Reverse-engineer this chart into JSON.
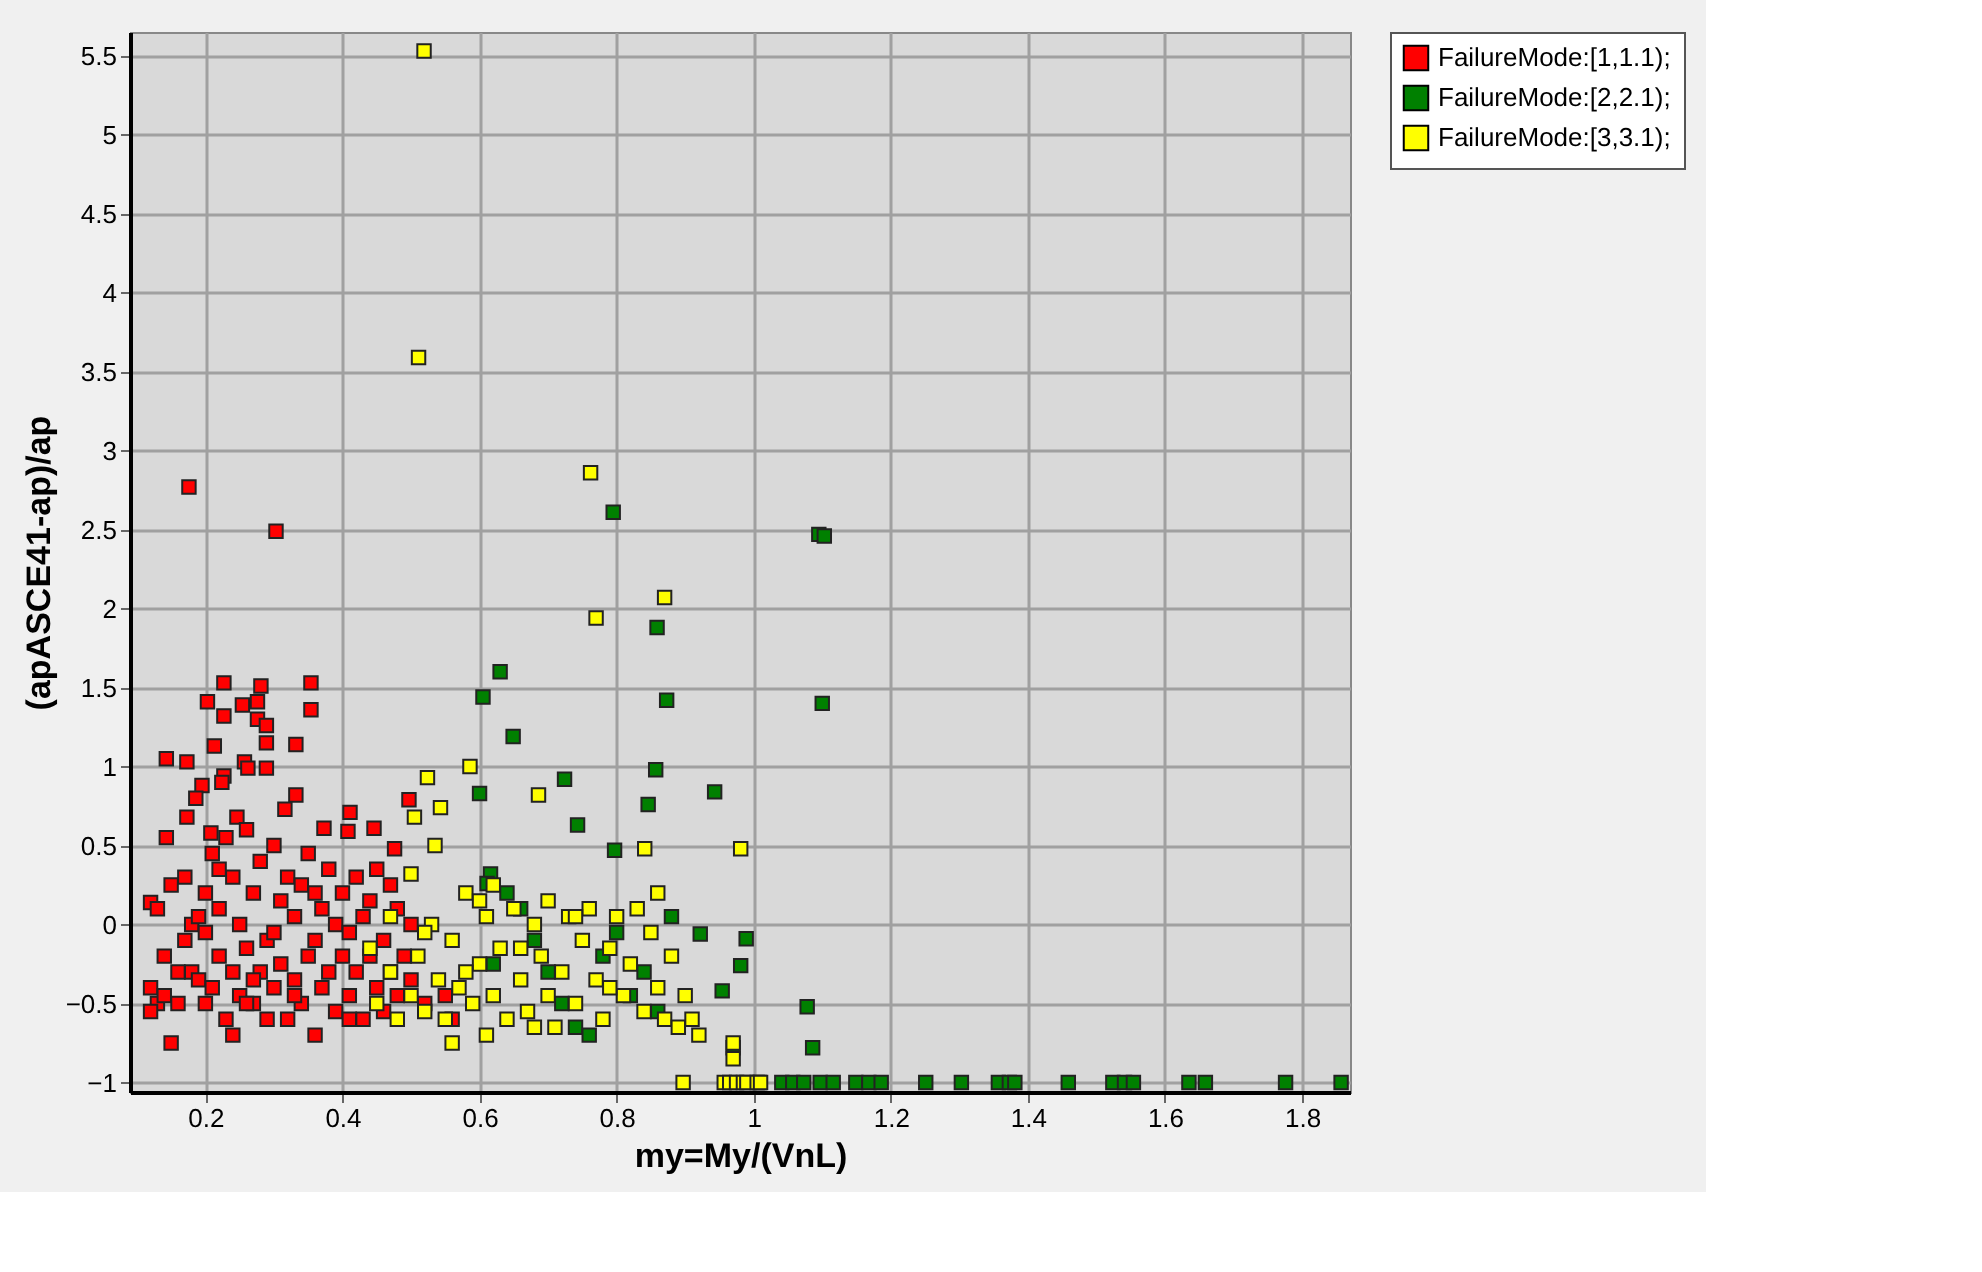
{
  "chart_data": {
    "type": "scatter",
    "xlabel": "my=My/(VnL)",
    "ylabel": "(apASCE41-ap)/ap",
    "xlim": [
      0.09,
      1.87
    ],
    "ylim": [
      -1.06,
      5.65
    ],
    "xticks": [
      0.2,
      0.4,
      0.6,
      0.8,
      1,
      1.2,
      1.4,
      1.6,
      1.8
    ],
    "yticks": [
      -1,
      -0.5,
      0,
      0.5,
      1,
      1.5,
      2,
      2.5,
      3,
      3.5,
      4,
      4.5,
      5,
      5.5
    ],
    "grid": true,
    "legend": "top right",
    "marker": "square",
    "series": [
      {
        "name": "FailureMode:[1,1.1);",
        "color": "#ff0000",
        "x": [
          0.176,
          0.303,
          0.227,
          0.281,
          0.354,
          0.203,
          0.227,
          0.254,
          0.276,
          0.354,
          0.276,
          0.289,
          0.289,
          0.332,
          0.213,
          0.143,
          0.173,
          0.257,
          0.262,
          0.289,
          0.195,
          0.227,
          0.224,
          0.186,
          0.332,
          0.173,
          0.316,
          0.246,
          0.208,
          0.143,
          0.373,
          0.411,
          0.446,
          0.408,
          0.476,
          0.497,
          0.12,
          0.13,
          0.14,
          0.12,
          0.13,
          0.12,
          0.14,
          0.15,
          0.16,
          0.17,
          0.17,
          0.18,
          0.18,
          0.19,
          0.2,
          0.2,
          0.21,
          0.21,
          0.22,
          0.22,
          0.23,
          0.23,
          0.24,
          0.24,
          0.25,
          0.25,
          0.26,
          0.26,
          0.27,
          0.27,
          0.28,
          0.28,
          0.29,
          0.3,
          0.3,
          0.31,
          0.31,
          0.32,
          0.32,
          0.33,
          0.33,
          0.34,
          0.34,
          0.35,
          0.35,
          0.36,
          0.36,
          0.37,
          0.37,
          0.38,
          0.38,
          0.39,
          0.39,
          0.4,
          0.4,
          0.41,
          0.41,
          0.42,
          0.42,
          0.43,
          0.43,
          0.44,
          0.44,
          0.45,
          0.45,
          0.46,
          0.46,
          0.47,
          0.47,
          0.48,
          0.48,
          0.49,
          0.5,
          0.5,
          0.52,
          0.55,
          0.56,
          0.19,
          0.15,
          0.16,
          0.27,
          0.29,
          0.33,
          0.2,
          0.24,
          0.3,
          0.36,
          0.41,
          0.26,
          0.22
        ],
        "values": [
          2.77,
          2.49,
          1.53,
          1.51,
          1.53,
          1.41,
          1.32,
          1.39,
          1.41,
          1.36,
          1.3,
          1.26,
          1.15,
          1.14,
          1.13,
          1.05,
          1.03,
          1.03,
          0.99,
          0.99,
          0.88,
          0.94,
          0.9,
          0.8,
          0.82,
          0.68,
          0.73,
          0.68,
          0.58,
          0.55,
          0.61,
          0.71,
          0.61,
          0.59,
          0.48,
          0.79,
          0.14,
          0.1,
          -0.2,
          -0.4,
          -0.5,
          -0.55,
          -0.45,
          -0.75,
          -0.5,
          0.3,
          -0.1,
          -0.3,
          0.0,
          -0.35,
          0.2,
          -0.05,
          0.45,
          -0.4,
          -0.2,
          0.1,
          0.55,
          -0.6,
          -0.3,
          0.3,
          0.0,
          -0.45,
          0.6,
          -0.15,
          -0.5,
          0.2,
          -0.3,
          0.4,
          -0.1,
          0.5,
          -0.4,
          -0.25,
          0.15,
          -0.6,
          0.3,
          -0.35,
          0.05,
          -0.5,
          0.25,
          -0.2,
          0.45,
          -0.7,
          -0.1,
          -0.4,
          0.1,
          -0.3,
          0.35,
          -0.55,
          0.0,
          -0.2,
          0.2,
          -0.45,
          -0.05,
          -0.3,
          0.3,
          -0.6,
          0.05,
          -0.2,
          0.15,
          -0.4,
          0.35,
          -0.1,
          -0.55,
          0.25,
          -0.3,
          0.1,
          -0.45,
          -0.2,
          0.0,
          -0.35,
          -0.5,
          -0.45,
          -0.6,
          0.05,
          0.25,
          -0.3,
          -0.35,
          -0.6,
          -0.45,
          -0.5,
          -0.7,
          -0.05,
          0.2,
          -0.6,
          -0.5,
          0.35
        ]
      },
      {
        "name": "FailureMode:[2,2.1);",
        "color": "#008000",
        "x": [
          0.605,
          0.63,
          0.649,
          0.6,
          0.795,
          0.859,
          0.873,
          0.857,
          0.846,
          0.724,
          0.743,
          0.797,
          0.943,
          1.095,
          1.103,
          1.1,
          0.989,
          0.981,
          0.922,
          0.954,
          1.078,
          1.086,
          0.97,
          0.616,
          0.611,
          0.66,
          0.68,
          0.7,
          0.72,
          0.74,
          0.76,
          0.78,
          0.8,
          0.82,
          0.84,
          0.86,
          0.88,
          0.62,
          0.64,
          1.008,
          1.041,
          1.057,
          1.073,
          1.097,
          1.116,
          1.149,
          1.168,
          1.186,
          1.251,
          1.303,
          1.357,
          1.373,
          1.381,
          1.459,
          1.524,
          1.541,
          1.554,
          1.635,
          1.659,
          1.776,
          1.857
        ],
        "values": [
          1.44,
          1.6,
          1.19,
          0.83,
          2.61,
          1.88,
          1.42,
          0.98,
          0.76,
          0.92,
          0.63,
          0.47,
          0.84,
          2.47,
          2.46,
          1.4,
          -0.09,
          -0.26,
          -0.06,
          -0.42,
          -0.52,
          -0.78,
          -0.78,
          0.32,
          0.26,
          0.1,
          -0.1,
          -0.3,
          -0.5,
          -0.65,
          -0.7,
          -0.2,
          -0.05,
          -0.45,
          -0.3,
          -0.55,
          0.05,
          -0.25,
          0.2,
          -1,
          -1,
          -1,
          -1,
          -1,
          -1,
          -1,
          -1,
          -1,
          -1,
          -1,
          -1,
          -1,
          -1,
          -1,
          -1,
          -1,
          -1,
          -1,
          -1,
          -1,
          -1
        ]
      },
      {
        "name": "FailureMode:[3,3.1);",
        "color": "#ffff00",
        "x": [
          0.519,
          0.511,
          0.762,
          0.87,
          0.77,
          0.586,
          0.524,
          0.543,
          0.686,
          0.841,
          0.981,
          0.505,
          0.535,
          0.5,
          0.897,
          0.957,
          0.965,
          0.975,
          0.985,
          0.99,
          1.005,
          1.01,
          0.97,
          0.97,
          0.45,
          0.47,
          0.48,
          0.5,
          0.51,
          0.52,
          0.53,
          0.54,
          0.55,
          0.56,
          0.57,
          0.58,
          0.59,
          0.6,
          0.61,
          0.61,
          0.62,
          0.63,
          0.64,
          0.65,
          0.66,
          0.67,
          0.68,
          0.69,
          0.7,
          0.7,
          0.71,
          0.72,
          0.73,
          0.74,
          0.75,
          0.76,
          0.77,
          0.78,
          0.79,
          0.8,
          0.81,
          0.82,
          0.83,
          0.84,
          0.85,
          0.86,
          0.86,
          0.87,
          0.88,
          0.89,
          0.9,
          0.91,
          0.92,
          0.56,
          0.62,
          0.6,
          0.52,
          0.66,
          0.74,
          0.79,
          0.68,
          0.58,
          0.44,
          0.47
        ],
        "values": [
          5.53,
          3.59,
          2.86,
          2.07,
          1.94,
          1.0,
          0.93,
          0.74,
          0.82,
          0.48,
          0.48,
          0.68,
          0.5,
          0.32,
          -1,
          -1,
          -1,
          -1,
          -1,
          -1,
          -1,
          -1,
          -0.85,
          -0.75,
          -0.5,
          -0.3,
          -0.6,
          -0.45,
          -0.2,
          -0.55,
          0.0,
          -0.35,
          -0.6,
          -0.1,
          -0.4,
          0.2,
          -0.5,
          -0.25,
          -0.7,
          0.05,
          -0.45,
          -0.15,
          -0.6,
          0.1,
          -0.35,
          -0.55,
          0.0,
          -0.2,
          -0.45,
          0.15,
          -0.65,
          -0.3,
          0.05,
          -0.5,
          -0.1,
          0.1,
          -0.35,
          -0.6,
          -0.15,
          0.05,
          -0.45,
          -0.25,
          0.1,
          -0.55,
          -0.05,
          0.2,
          -0.4,
          -0.6,
          -0.2,
          -0.65,
          -0.45,
          -0.6,
          -0.7,
          -0.75,
          0.25,
          0.15,
          -0.05,
          -0.15,
          0.05,
          -0.4,
          -0.65,
          -0.3,
          -0.15,
          0.05
        ]
      }
    ]
  }
}
